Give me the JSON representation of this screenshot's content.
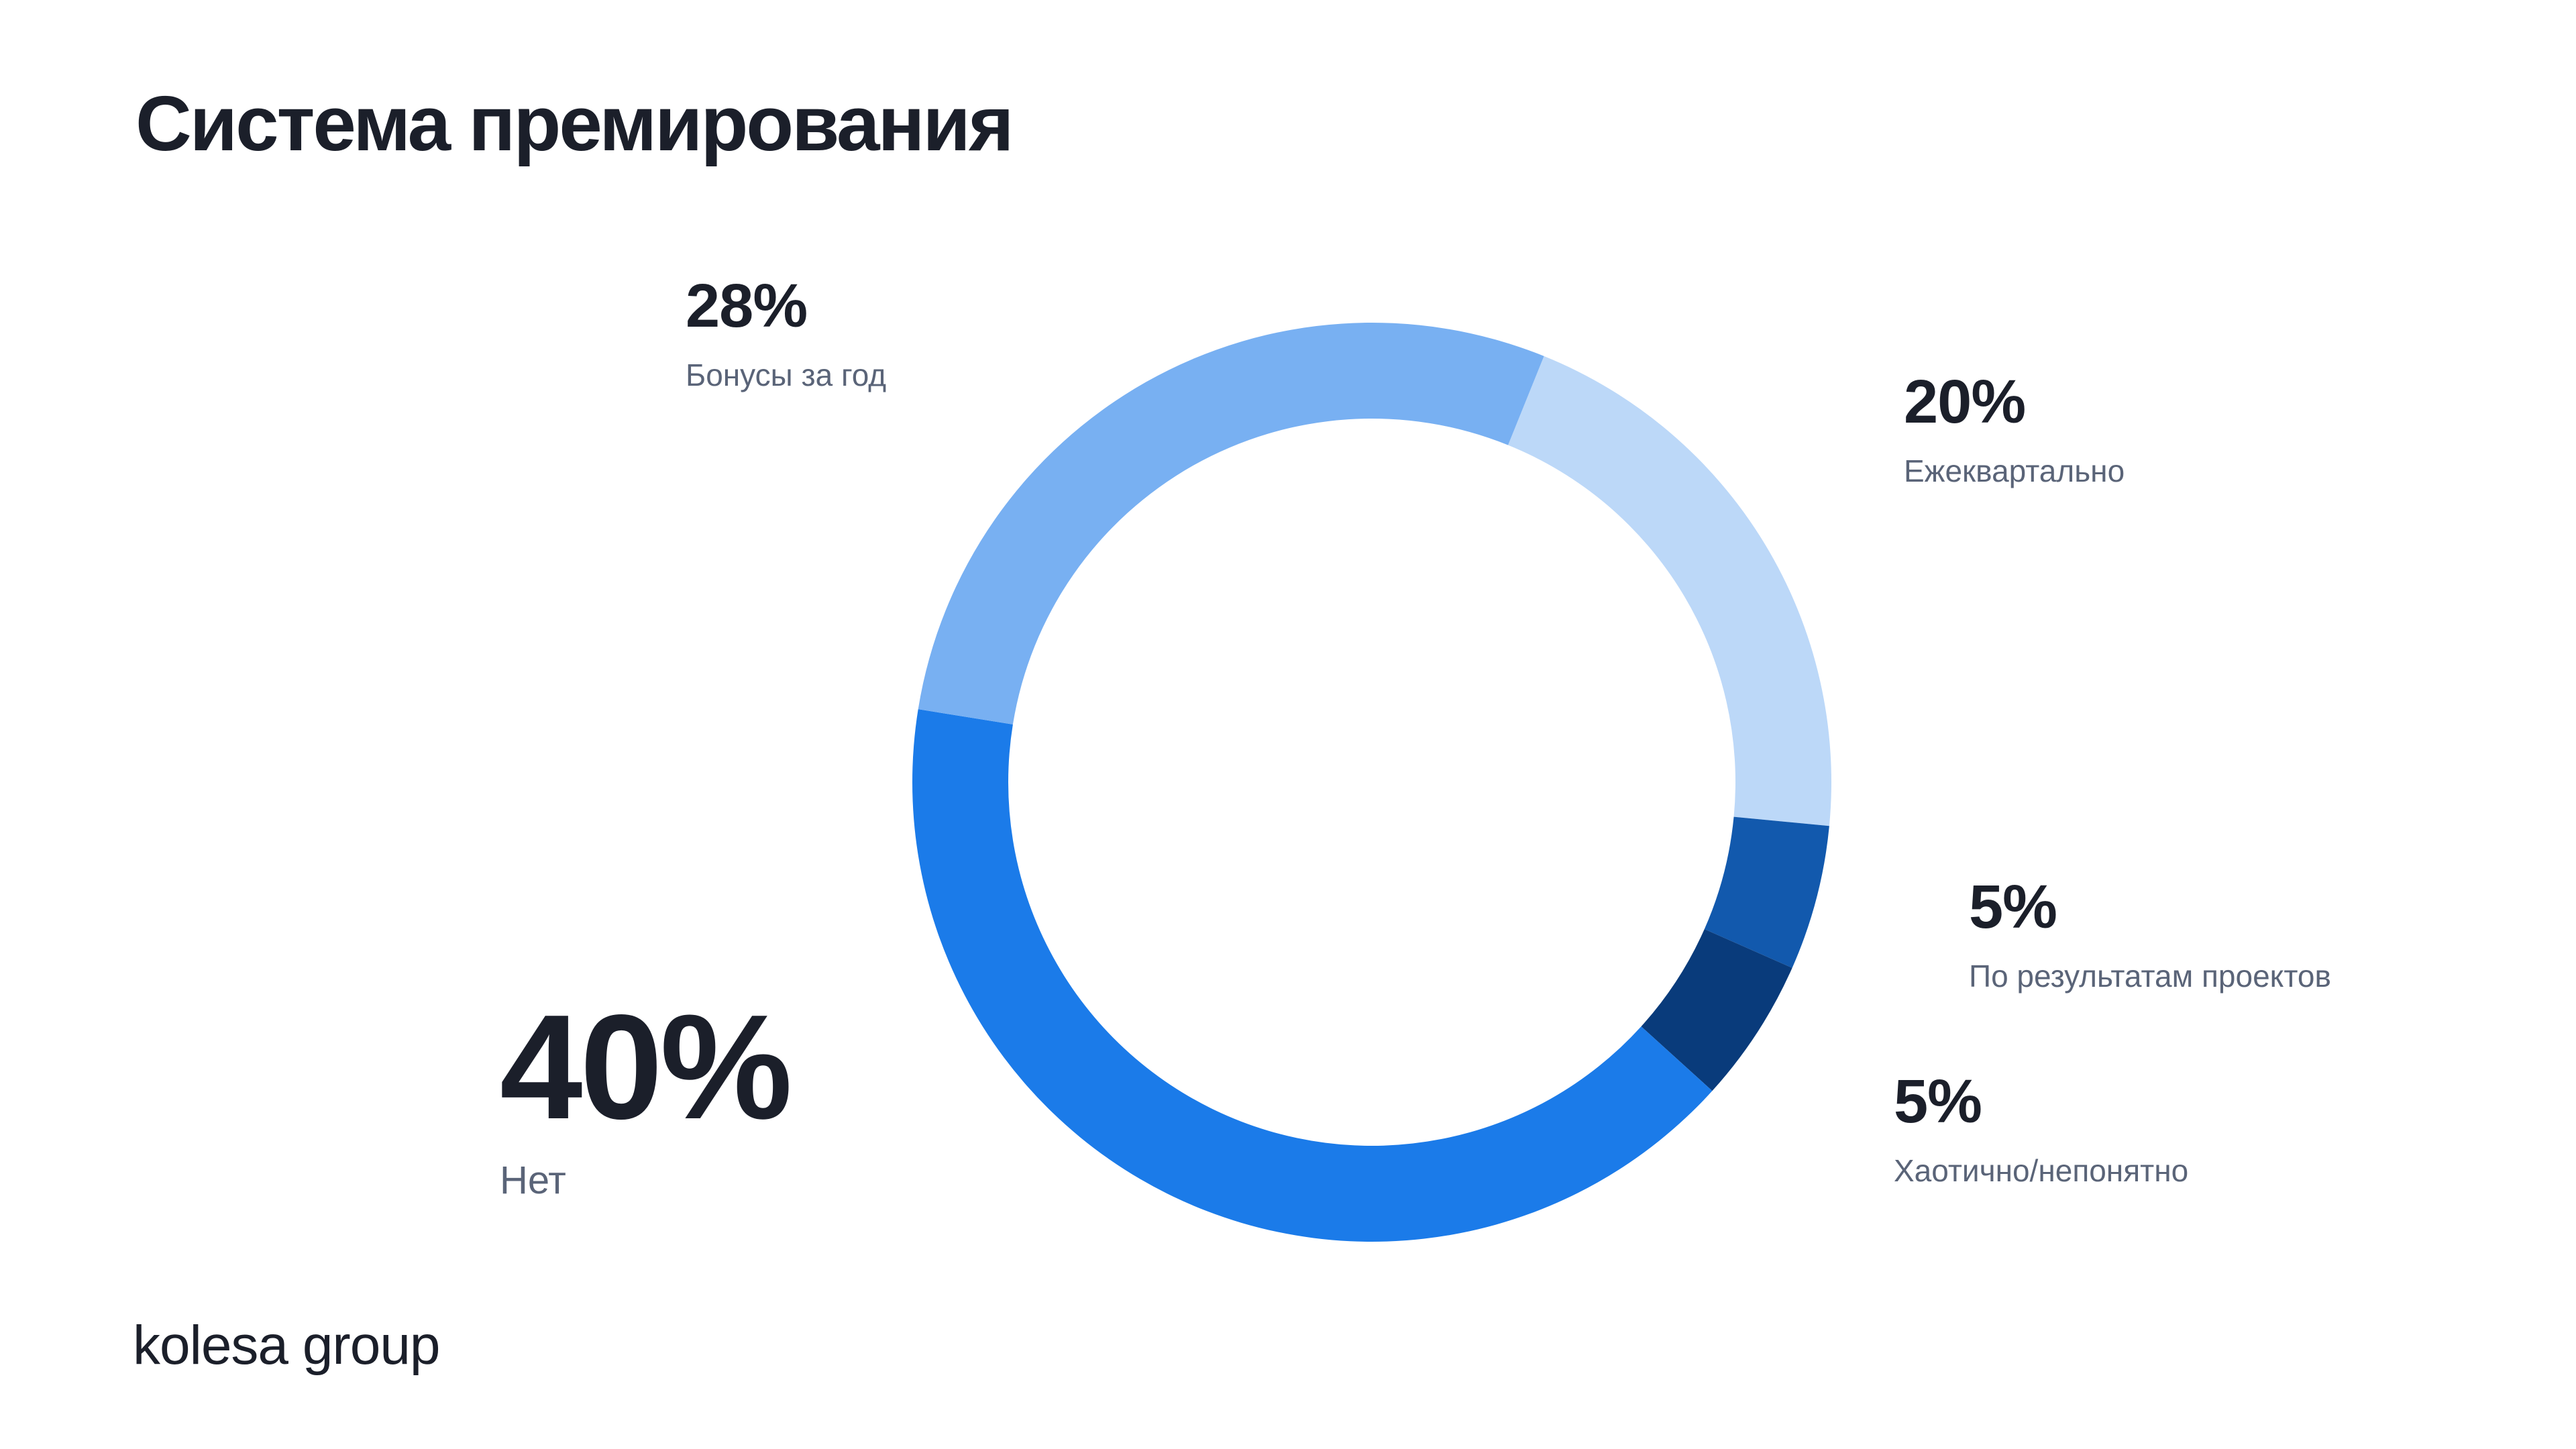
{
  "slide": {
    "title": "Система премирования",
    "brand": "kolesa group"
  },
  "chart_data": {
    "type": "pie",
    "variant": "donut",
    "title": "Система премирования",
    "legend": "none",
    "slices": [
      {
        "label": "Ежеквартально",
        "value": 20,
        "value_text": "20%",
        "color": "#bcd8f8"
      },
      {
        "label": "По результатам проектов",
        "value": 5,
        "value_text": "5%",
        "color": "#1259ad"
      },
      {
        "label": "Хаотично/непонятно",
        "value": 5,
        "value_text": "5%",
        "color": "#093b7b"
      },
      {
        "label": "Нет",
        "value": 40,
        "value_text": "40%",
        "color": "#1b7be9"
      },
      {
        "label": "Бонусы за год",
        "value": 28,
        "value_text": "28%",
        "color": "#78b0f2"
      }
    ]
  }
}
